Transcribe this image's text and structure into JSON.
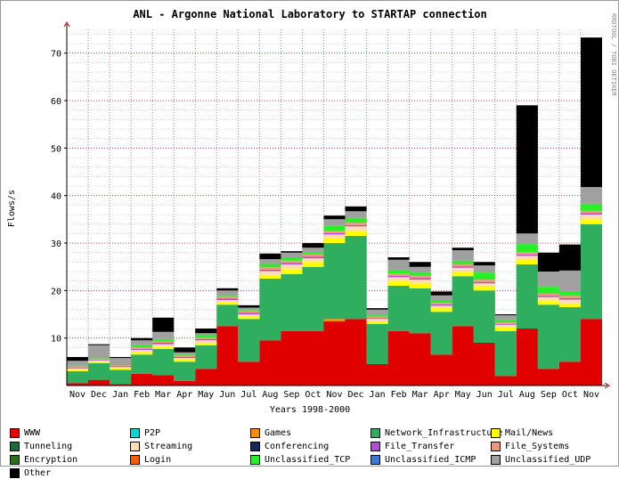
{
  "chart_data": {
    "type": "area",
    "title": "ANL - Argonne National Laboratory to STARTAP connection",
    "xlabel": "Years 1998-2000",
    "ylabel": "Flows/s",
    "credit": "RRDTOOL / TOBI OETIKER",
    "ylim": [
      0,
      75
    ],
    "yticks": [
      10,
      20,
      30,
      40,
      50,
      60,
      70
    ],
    "grid": true,
    "legend_position": "bottom",
    "categories": [
      "Nov",
      "Dec",
      "Jan",
      "Feb",
      "Mar",
      "Apr",
      "May",
      "Jun",
      "Jul",
      "Aug",
      "Sep",
      "Oct",
      "Nov",
      "Dec",
      "Jan",
      "Feb",
      "Mar",
      "Apr",
      "May",
      "Jun",
      "Jul",
      "Aug",
      "Sep",
      "Oct",
      "Nov"
    ],
    "series": [
      {
        "name": "WWW",
        "color": "#e00000",
        "values": [
          0.5,
          1.2,
          0.3,
          2.5,
          2.2,
          1.0,
          3.5,
          12.5,
          5.0,
          9.5,
          11.5,
          11.5,
          13.5,
          14.0,
          4.5,
          11.5,
          11.0,
          6.5,
          12.5,
          9.0,
          2.0,
          12.0,
          3.5,
          5.0,
          14.0
        ]
      },
      {
        "name": "P2P",
        "color": "#00d8d8",
        "values": [
          0,
          0,
          0,
          0,
          0,
          0,
          0,
          0,
          0,
          0,
          0,
          0,
          0,
          0,
          0,
          0,
          0,
          0,
          0,
          0,
          0,
          0,
          0,
          0,
          0
        ]
      },
      {
        "name": "Games",
        "color": "#ff8c00",
        "values": [
          0,
          0,
          0,
          0,
          0,
          0,
          0,
          0,
          0,
          0,
          0,
          0,
          0.5,
          0,
          0,
          0,
          0,
          0,
          0,
          0,
          0,
          0,
          0,
          0,
          0
        ]
      },
      {
        "name": "Network_Infrastructure",
        "color": "#2eae5e",
        "values": [
          2.5,
          3.5,
          3.0,
          4.0,
          5.5,
          4.0,
          5.0,
          4.5,
          9.0,
          13.0,
          12.0,
          13.5,
          16.0,
          17.5,
          8.5,
          9.5,
          9.5,
          9.0,
          10.5,
          11.0,
          9.5,
          13.5,
          13.5,
          11.5,
          20.0
        ]
      },
      {
        "name": "Mail/News",
        "color": "#ffff00",
        "values": [
          0.3,
          0.3,
          0.3,
          0.5,
          0.5,
          0.5,
          0.5,
          0.5,
          0.5,
          0.8,
          1.0,
          1.0,
          1.0,
          1.0,
          0.5,
          1.0,
          1.0,
          0.8,
          1.0,
          1.0,
          0.8,
          1.0,
          0.8,
          0.8,
          1.0
        ]
      },
      {
        "name": "Tunneling",
        "color": "#1a6a3a",
        "values": [
          0,
          0,
          0,
          0,
          0,
          0,
          0,
          0,
          0,
          0,
          0,
          0,
          0,
          0,
          0,
          0,
          0,
          0,
          0,
          0,
          0,
          0,
          0,
          0,
          0
        ]
      },
      {
        "name": "Streaming",
        "color": "#ffdcb4",
        "values": [
          0.3,
          0.3,
          0.3,
          0.5,
          0.5,
          0.3,
          0.5,
          0.5,
          0.5,
          0.8,
          1.0,
          0.8,
          0.8,
          1.0,
          0.5,
          0.8,
          0.8,
          0.5,
          0.8,
          0.5,
          0.5,
          0.8,
          0.8,
          0.8,
          1.0
        ]
      },
      {
        "name": "Conferencing",
        "color": "#14285a",
        "values": [
          0,
          0,
          0,
          0,
          0,
          0,
          0,
          0,
          0,
          0,
          0,
          0,
          0,
          0,
          0,
          0,
          0,
          0,
          0,
          0,
          0,
          0,
          0,
          0,
          0
        ]
      },
      {
        "name": "File_Transfer",
        "color": "#b44cd4",
        "values": [
          0.2,
          0.2,
          0.2,
          0.2,
          0.3,
          0.2,
          0.3,
          0.3,
          0.3,
          0.3,
          0.3,
          0.3,
          0.3,
          0.3,
          0.2,
          0.3,
          0.3,
          0.3,
          0.3,
          0.3,
          0.2,
          0.3,
          0.3,
          0.3,
          0.3
        ]
      },
      {
        "name": "File_Systems",
        "color": "#f0967a",
        "values": [
          0.2,
          0.2,
          0.2,
          0.3,
          0.3,
          0.2,
          0.3,
          0.3,
          0.3,
          0.5,
          0.5,
          0.5,
          0.5,
          0.5,
          0.3,
          0.5,
          0.5,
          0.3,
          0.5,
          0.5,
          0.3,
          0.5,
          0.5,
          0.5,
          0.5
        ]
      },
      {
        "name": "Encryption",
        "color": "#2c6e1e",
        "values": [
          0,
          0,
          0,
          0,
          0,
          0,
          0,
          0,
          0,
          0,
          0,
          0,
          0,
          0,
          0,
          0,
          0,
          0,
          0,
          0,
          0,
          0,
          0,
          0,
          0
        ]
      },
      {
        "name": "Login",
        "color": "#ff5a00",
        "values": [
          0,
          0,
          0,
          0,
          0,
          0,
          0,
          0,
          0,
          0,
          0,
          0,
          0,
          0,
          0,
          0,
          0,
          0,
          0,
          0,
          0,
          0,
          0,
          0,
          0
        ]
      },
      {
        "name": "Unclassified_TCP",
        "color": "#28f028",
        "values": [
          0.2,
          0.3,
          0.2,
          0.5,
          0.5,
          0.3,
          0.5,
          0.3,
          0.3,
          0.7,
          0.7,
          0.5,
          1.0,
          1.0,
          0.3,
          0.7,
          0.7,
          0.5,
          0.7,
          1.5,
          0.5,
          1.7,
          1.4,
          1.0,
          1.5
        ]
      },
      {
        "name": "Unclassified_ICMP",
        "color": "#3c78dc",
        "values": [
          0,
          0,
          0,
          0,
          0,
          0,
          0,
          0,
          0,
          0,
          0,
          0,
          0,
          0,
          0,
          0,
          0,
          0,
          0,
          0,
          0,
          0,
          0,
          0,
          0
        ]
      },
      {
        "name": "Unclassified_UDP",
        "color": "#a0a0a0",
        "values": [
          1.0,
          2.5,
          1.3,
          1.0,
          1.5,
          0.5,
          0.4,
          1.1,
          0.5,
          1.0,
          1.0,
          0.9,
          1.4,
          1.4,
          1.2,
          2.2,
          1.2,
          1.1,
          2.2,
          1.5,
          1.0,
          2.2,
          3.2,
          4.3,
          3.5
        ]
      },
      {
        "name": "Other",
        "color": "#000000",
        "values": [
          0.8,
          0.2,
          0.2,
          0.5,
          3.0,
          1.0,
          1.0,
          0.5,
          0.5,
          1.2,
          0.3,
          1.0,
          0.8,
          1.0,
          0.3,
          0.5,
          1.0,
          0.8,
          0.5,
          0.7,
          0.2,
          27.0,
          4.0,
          5.5,
          31.5
        ]
      }
    ]
  }
}
